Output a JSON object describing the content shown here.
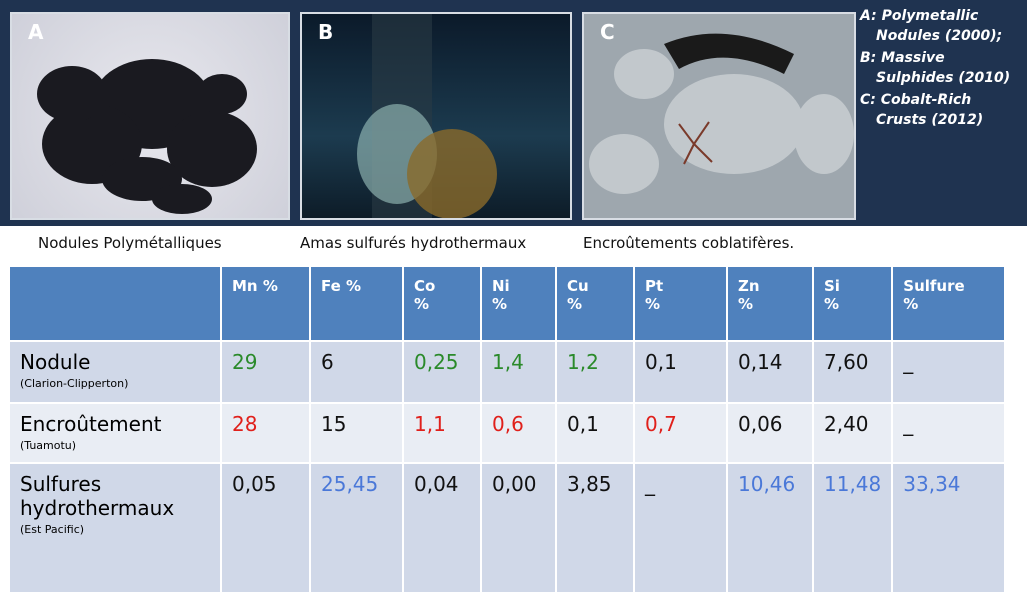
{
  "photos": [
    {
      "label": "A"
    },
    {
      "label": "B"
    },
    {
      "label": "C"
    }
  ],
  "legend": [
    {
      "key": "A:",
      "text": "Polymetallic Nodules (2000);"
    },
    {
      "key": "B:",
      "text": "Massive Sulphides (2010)"
    },
    {
      "key": "C:",
      "text": "Cobalt-Rich Crusts (2012)"
    }
  ],
  "captions": [
    "Nodules Polymétalliques",
    "Amas sulfurés hydrothermaux",
    "Encroûtements coblatifères."
  ],
  "table": {
    "headers": [
      "",
      "Mn %",
      "Fe %",
      "Co %",
      "Ni %",
      "Cu %",
      "Pt %",
      "Zn %",
      "Si %",
      "Sulfure %"
    ],
    "rows": [
      {
        "name": "Nodule",
        "sub": "(Clarion-Clipperton)",
        "cells": [
          {
            "text": "29",
            "color": "green"
          },
          {
            "text": "6",
            "color": "black"
          },
          {
            "text": "0,25",
            "color": "green"
          },
          {
            "text": "1,4",
            "color": "green"
          },
          {
            "text": "1,2",
            "color": "green"
          },
          {
            "text": "0,1",
            "color": "black"
          },
          {
            "text": "0,14",
            "color": "black"
          },
          {
            "text": "7,60",
            "color": "black"
          },
          {
            "text": "_",
            "color": "black"
          }
        ]
      },
      {
        "name": "Encroûtement",
        "sub": "(Tuamotu)",
        "cells": [
          {
            "text": "28",
            "color": "red"
          },
          {
            "text": "15",
            "color": "black"
          },
          {
            "text": "1,1",
            "color": "red"
          },
          {
            "text": "0,6",
            "color": "red"
          },
          {
            "text": "0,1",
            "color": "black"
          },
          {
            "text": "0,7",
            "color": "red"
          },
          {
            "text": "0,06",
            "color": "black"
          },
          {
            "text": "2,40",
            "color": "black"
          },
          {
            "text": "_",
            "color": "black"
          }
        ]
      },
      {
        "name": "Sulfures hydrothermaux",
        "sub": "(Est Pacific)",
        "cells": [
          {
            "text": "0,05",
            "color": "black"
          },
          {
            "text": "25,45",
            "color": "blue"
          },
          {
            "text": "0,04",
            "color": "black"
          },
          {
            "text": "0,00",
            "color": "black"
          },
          {
            "text": "3,85",
            "color": "black"
          },
          {
            "text": "_",
            "color": "black"
          },
          {
            "text": "10,46",
            "color": "blue"
          },
          {
            "text": "11,48",
            "color": "blue"
          },
          {
            "text": "33,34",
            "color": "blue"
          }
        ]
      }
    ]
  }
}
